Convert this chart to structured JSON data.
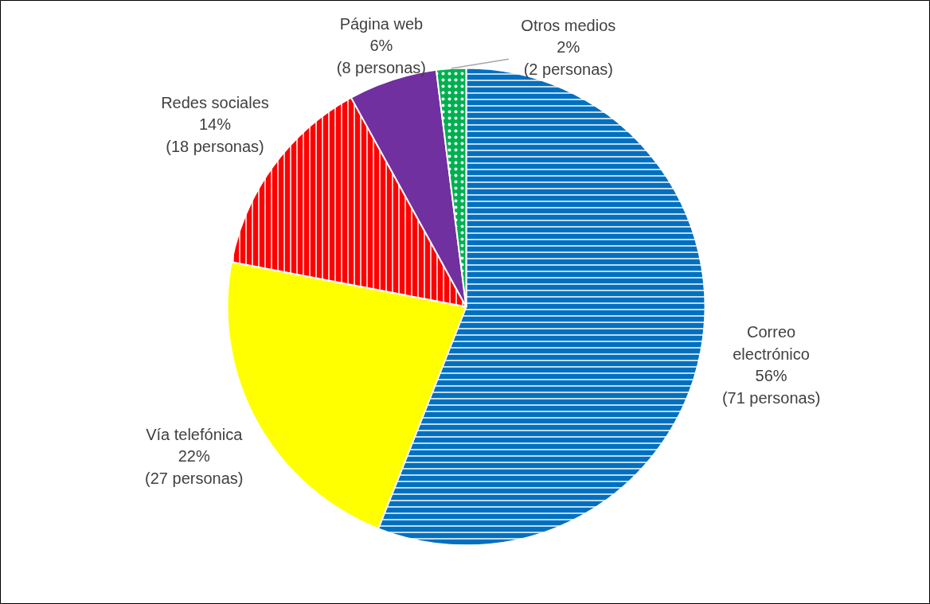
{
  "chart_data": {
    "type": "pie",
    "categories": [
      "Correo electrónico",
      "Vía telefónica",
      "Redes sociales",
      "Página web",
      "Otros medios"
    ],
    "values": [
      56,
      22,
      14,
      6,
      2
    ],
    "colors": [
      "#0070c0",
      "#ffff00",
      "#ff0000",
      "#7030a0",
      "#00b050"
    ],
    "value_labels": [
      "56%\n(71 personas)",
      "22%\n(27 personas)",
      "14%\n(18 personas)",
      "6%\n(8 personas)",
      "2%\n(2 personas)"
    ],
    "legend": false
  }
}
